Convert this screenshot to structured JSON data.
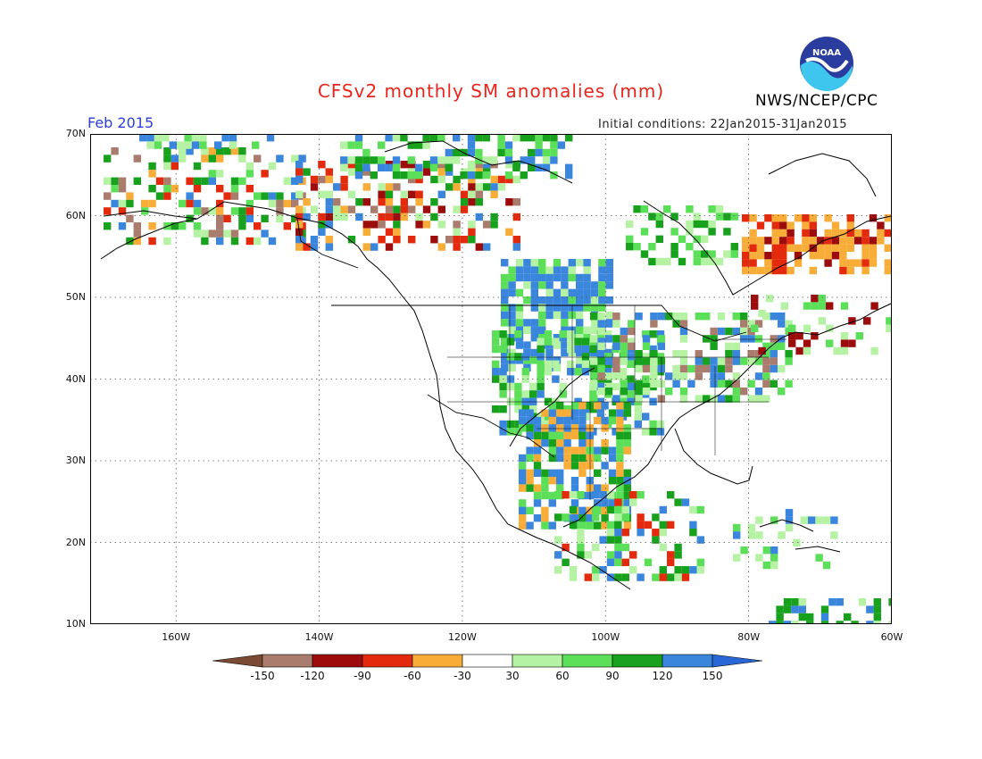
{
  "header": {
    "title": "CFSv2 monthly SM anomalies (mm)",
    "agency": "NWS/NCEP/CPC",
    "valid_month": "Feb 2015",
    "initial_conditions": "Initial conditions: 22Jan2015-31Jan2015",
    "logo_text": "NOAA"
  },
  "map": {
    "lon_range": [
      -172,
      -60
    ],
    "lat_range": [
      10,
      70
    ],
    "lat_labels": [
      "70N",
      "60N",
      "50N",
      "40N",
      "30N",
      "20N",
      "10N"
    ],
    "lon_labels": [
      "160W",
      "140W",
      "120W",
      "100W",
      "80W",
      "60W"
    ],
    "grid": true
  },
  "legend": {
    "tick_labels": [
      "-150",
      "-120",
      "-90",
      "-60",
      "-30",
      "30",
      "60",
      "90",
      "120",
      "150"
    ],
    "colors": [
      "#7a4a32",
      "#a97c6e",
      "#9c0c0c",
      "#e32a0c",
      "#f7ad38",
      "#ffffff",
      "#b5f2a3",
      "#5bde58",
      "#17a11d",
      "#3a86dc",
      "#2966d6"
    ]
  }
}
